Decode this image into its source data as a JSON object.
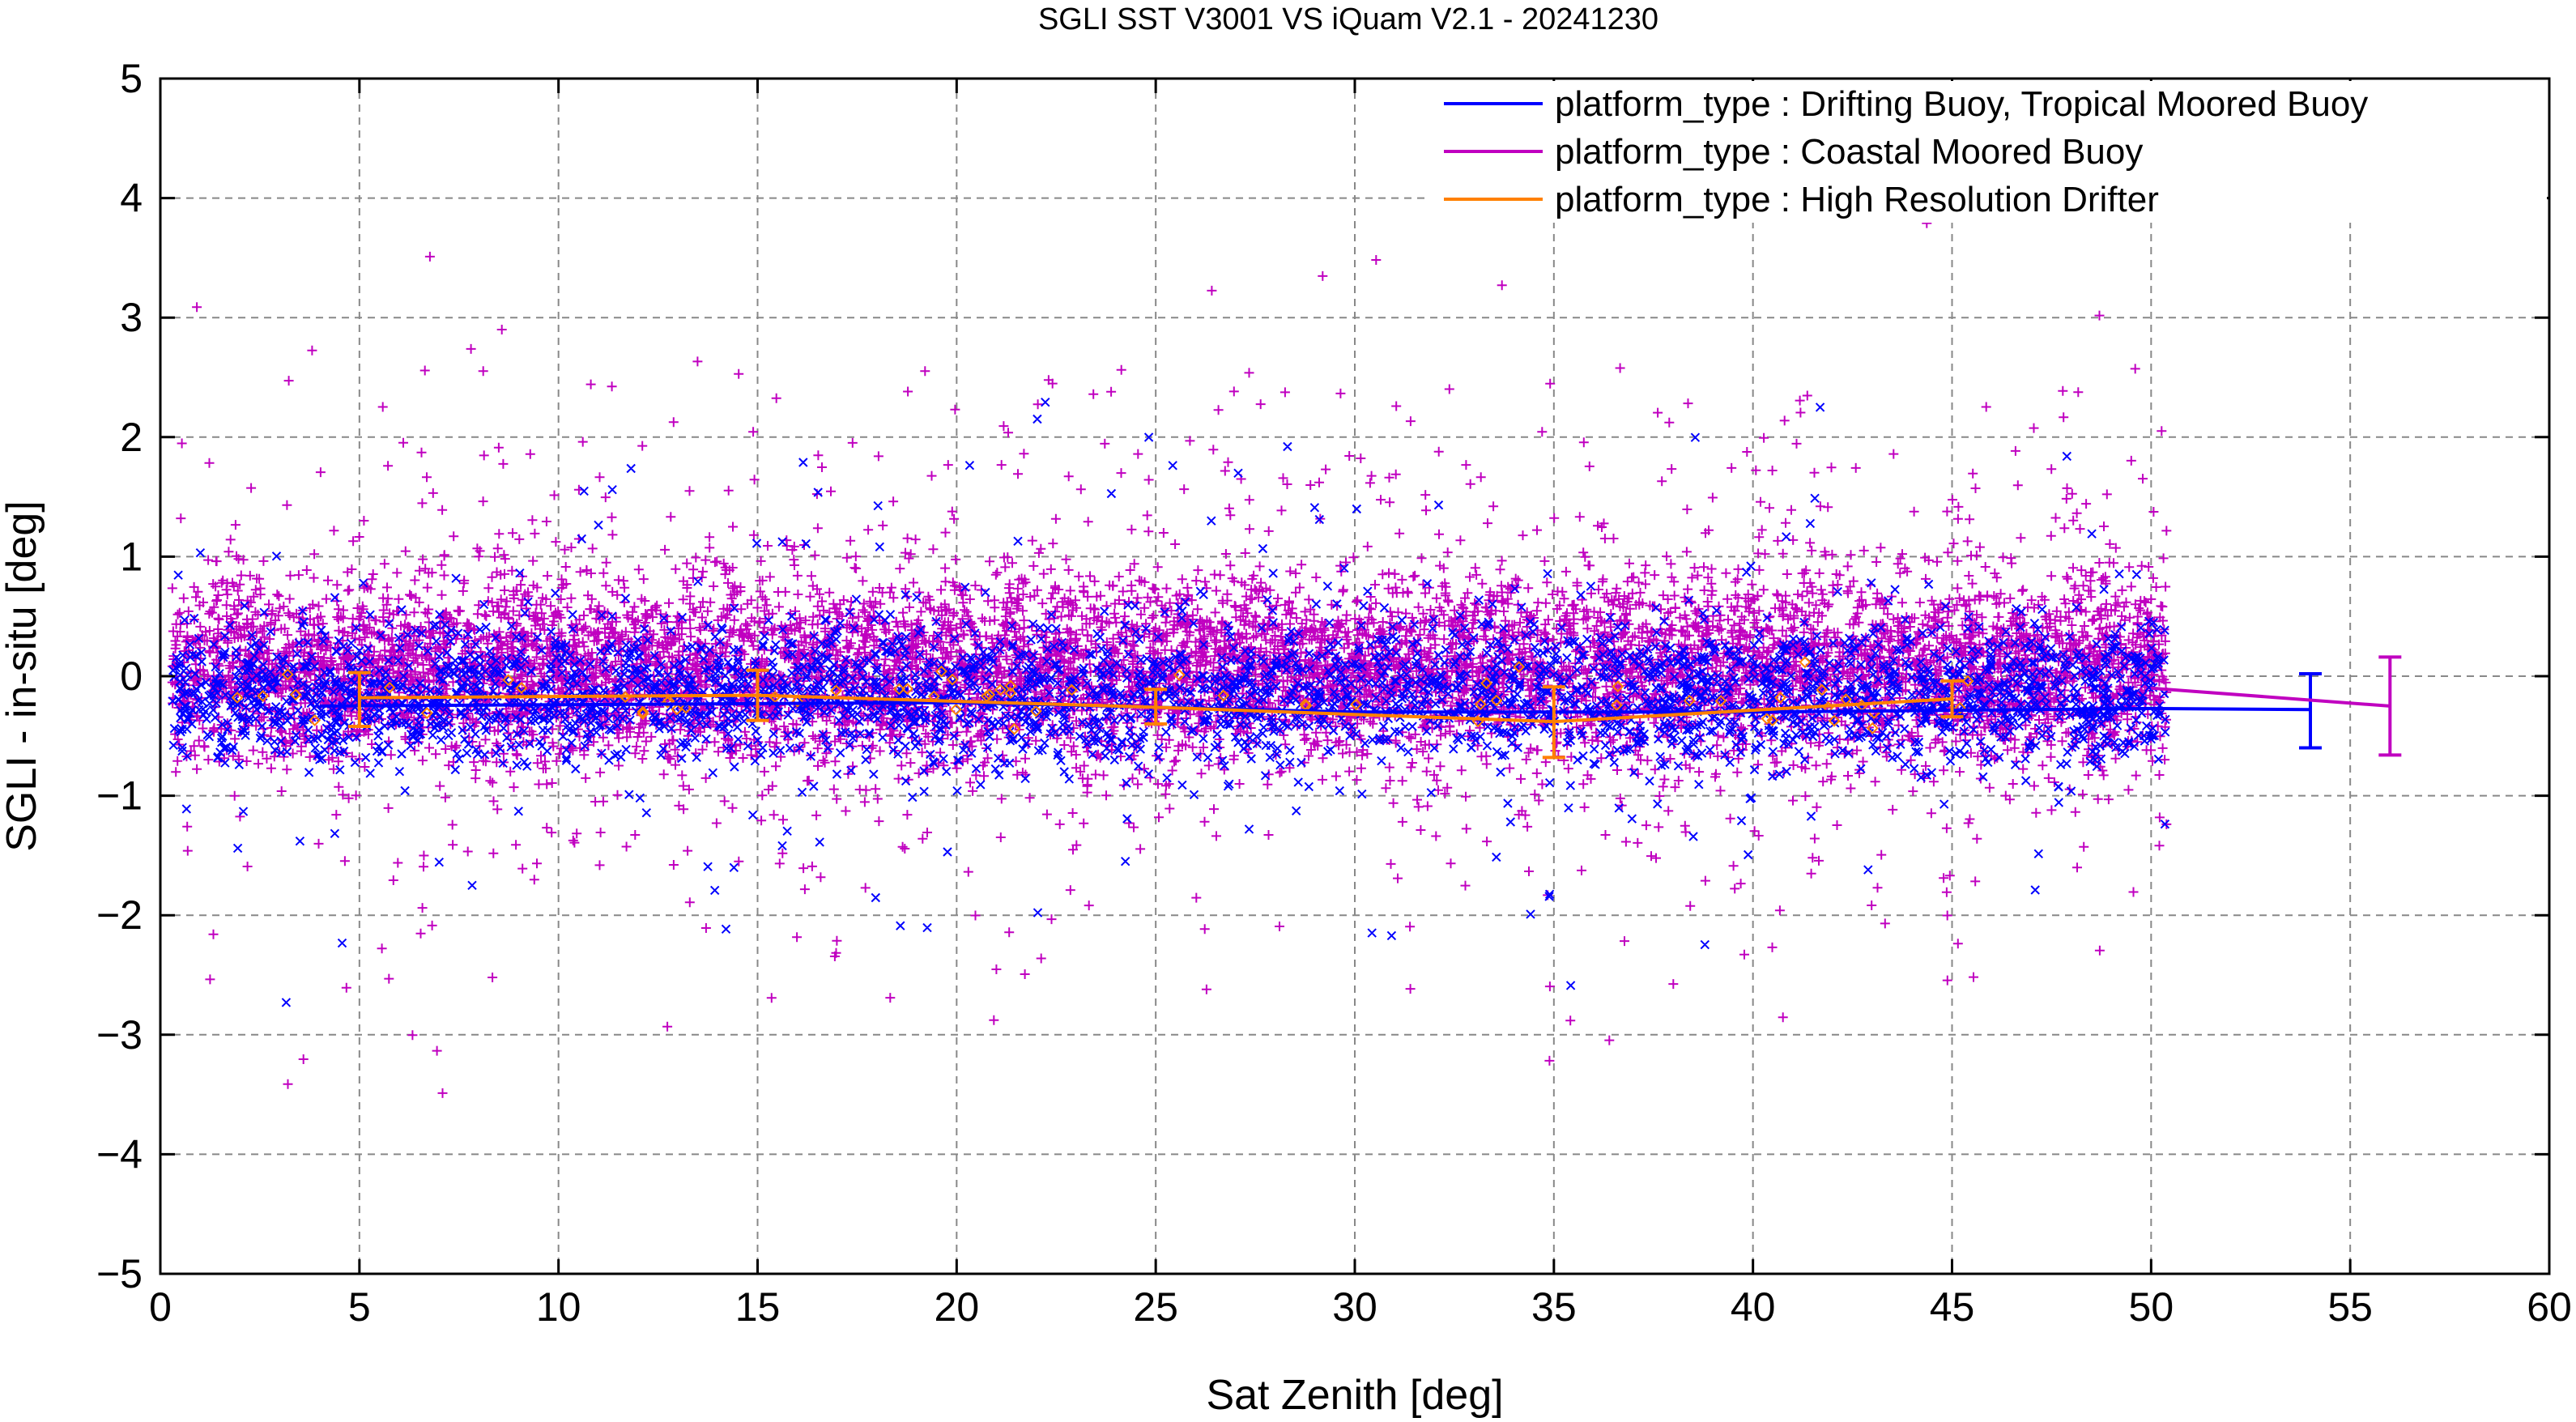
{
  "chart_data": {
    "type": "scatter",
    "title": "SGLI SST V3001 VS iQuam V2.1  - 20241230",
    "xlabel": "Sat Zenith [deg]",
    "ylabel": "SGLI - in-situ [deg]",
    "xlim": [
      0,
      60
    ],
    "ylim": [
      -5,
      5
    ],
    "xticks": [
      "0",
      "5",
      "10",
      "15",
      "20",
      "25",
      "30",
      "35",
      "40",
      "45",
      "50",
      "55",
      "60"
    ],
    "yticks": [
      "5",
      "4",
      "3",
      "2",
      "1",
      "0",
      "−1",
      "−2",
      "−3",
      "−4",
      "−5"
    ],
    "grid": true,
    "legend_position": "top-right",
    "series": [
      {
        "name": "platform_type : Drifting Buoy, Tropical Moored Buoy",
        "color": "#0000ff",
        "marker": "x",
        "scatter_x_range": [
          0.3,
          50.4
        ],
        "scatter_core_y": [
          -0.6,
          0.3
        ],
        "mean_line": {
          "x": [
            4,
            20,
            30,
            40,
            50,
            54
          ],
          "y": [
            -0.25,
            -0.22,
            -0.3,
            -0.3,
            -0.27,
            -0.28
          ]
        },
        "error_bars": [
          {
            "x": 54,
            "mean": -0.28,
            "low": -0.6,
            "high": 0.02
          }
        ]
      },
      {
        "name": "platform_type : Coastal Moored Buoy",
        "color": "#c000c0",
        "marker": "+",
        "scatter_x_range": [
          0.3,
          50.4
        ],
        "scatter_core_y": [
          -0.7,
          0.8
        ],
        "mean_line": {
          "x": [
            50,
            56
          ],
          "y": [
            -0.1,
            -0.25
          ]
        },
        "error_bars": [
          {
            "x": 56,
            "mean": -0.25,
            "low": -0.66,
            "high": 0.16
          }
        ]
      },
      {
        "name": "platform_type : High Resolution Drifter",
        "color": "#ff8000",
        "marker": "diamond",
        "mean_line": {
          "x": [
            5,
            15,
            25,
            35,
            45
          ],
          "y": [
            -0.18,
            -0.16,
            -0.26,
            -0.38,
            -0.19
          ]
        },
        "error_bars": [
          {
            "x": 5,
            "mean": -0.18,
            "low": -0.42,
            "high": 0.03
          },
          {
            "x": 15,
            "mean": -0.16,
            "low": -0.37,
            "high": 0.05
          },
          {
            "x": 25,
            "mean": -0.26,
            "low": -0.4,
            "high": -0.11
          },
          {
            "x": 35,
            "mean": -0.38,
            "low": -0.68,
            "high": -0.09
          },
          {
            "x": 45,
            "mean": -0.19,
            "low": -0.34,
            "high": -0.04
          }
        ]
      }
    ]
  }
}
